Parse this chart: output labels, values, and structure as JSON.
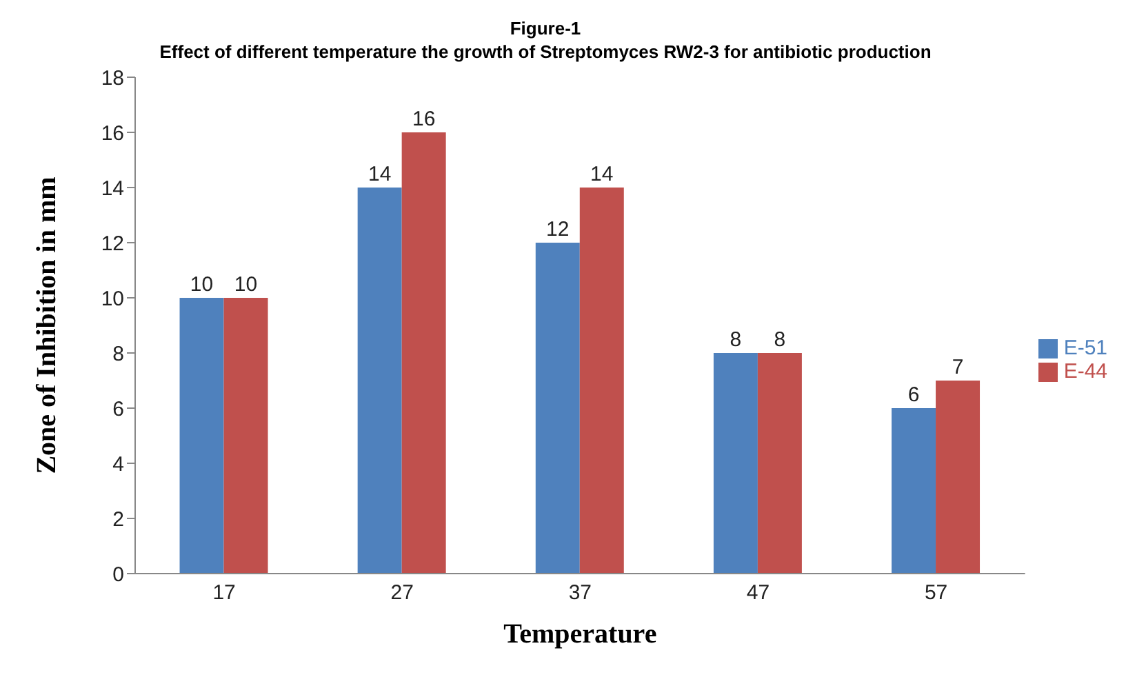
{
  "chart_data": {
    "type": "bar",
    "title": "Figure-1",
    "subtitle": "Effect of different temperature the growth of Streptomyces RW2-3 for antibiotic production",
    "xlabel": "Temperature",
    "ylabel": "Zone of Inhibition in mm",
    "categories": [
      "17",
      "27",
      "37",
      "47",
      "57"
    ],
    "series": [
      {
        "name": "E-51",
        "color": "#4f81bd",
        "values": [
          10,
          14,
          12,
          8,
          6
        ]
      },
      {
        "name": "E-44",
        "color": "#c0504d",
        "values": [
          10,
          16,
          14,
          8,
          7
        ]
      }
    ],
    "ylim": [
      0,
      18
    ],
    "yticks": [
      0,
      2,
      4,
      6,
      8,
      10,
      12,
      14,
      16,
      18
    ],
    "grid": false,
    "legend": "right",
    "data_labels": true
  }
}
